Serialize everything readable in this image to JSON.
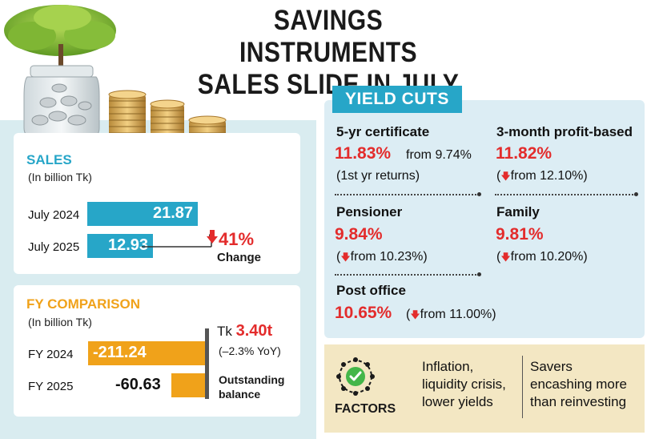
{
  "title": {
    "line1": "SAVINGS INSTRUMENTS",
    "line2": "SALES SLIDE IN JULY"
  },
  "sales": {
    "heading": "SALES",
    "unit": "(In billion Tk)",
    "rows": [
      {
        "label": "July 2024",
        "value": "21.87"
      },
      {
        "label": "July 2025",
        "value": "12.93"
      }
    ],
    "change_value": "41%",
    "change_label": "Change"
  },
  "fy": {
    "heading": "FY COMPARISON",
    "unit": "(In billion Tk)",
    "rows": [
      {
        "label": "FY 2024",
        "value": "-211.24"
      },
      {
        "label": "FY 2025",
        "value": "-60.63"
      }
    ],
    "balance_prefix": "Tk",
    "balance_value": "3.40t",
    "balance_yoy": "(–2.3% YoY)",
    "balance_label_1": "Outstanding",
    "balance_label_2": "balance"
  },
  "yield_cuts": {
    "heading": "YIELD CUTS",
    "items": [
      {
        "name": "5-yr certificate",
        "rate": "11.83%",
        "from": "from 9.74%",
        "note": "(1st yr returns)"
      },
      {
        "name": "3-month profit-based",
        "rate": "11.82%",
        "from": "from 12.10%)"
      },
      {
        "name": "Pensioner",
        "rate": "9.84%",
        "from": "from 10.23%)"
      },
      {
        "name": "Family",
        "rate": "9.81%",
        "from": "from 10.20%)"
      },
      {
        "name": "Post office",
        "rate": "10.65%",
        "from": "from 11.00%)"
      }
    ]
  },
  "factors": {
    "label": "FACTORS",
    "col1": [
      "Inflation,",
      "liquidity crisis,",
      "lower yields"
    ],
    "col2": [
      "Savers",
      "encashing more",
      "than reinvesting"
    ]
  },
  "colors": {
    "sales_bar": "#27a6c8",
    "fy_bar": "#f0a21a",
    "rate_red": "#e32c2c",
    "panel_blue": "#dcedf4",
    "left_bg": "#d9ecf0",
    "factors_bg": "#f3e7c3"
  },
  "icons": [
    "money-tree-jar-icon",
    "coin-stacks-icon",
    "checkmark-gear-icon",
    "down-arrow-icon"
  ],
  "chart_data": [
    {
      "type": "bar",
      "orientation": "horizontal",
      "title": "SALES",
      "subtitle": "(In billion Tk)",
      "categories": [
        "July 2024",
        "July 2025"
      ],
      "values": [
        21.87,
        12.93
      ],
      "annotation": "41% Change"
    },
    {
      "type": "bar",
      "orientation": "horizontal",
      "title": "FY COMPARISON",
      "subtitle": "(In billion Tk)",
      "categories": [
        "FY 2024",
        "FY 2025"
      ],
      "values": [
        -211.24,
        -60.63
      ],
      "annotation": "Tk 3.40t (–2.3% YoY) Outstanding balance"
    }
  ]
}
